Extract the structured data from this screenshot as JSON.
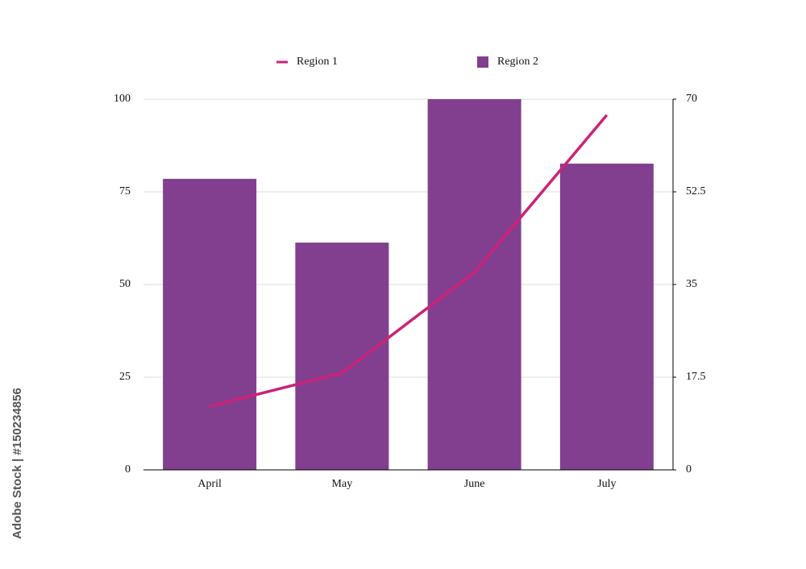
{
  "chart_data": {
    "type": "bar",
    "categories": [
      "April",
      "May",
      "June",
      "July"
    ],
    "series": [
      {
        "name": "Region 1",
        "type": "line",
        "axis": "y2",
        "color": "#cc2277",
        "values": [
          12.0,
          18.3,
          37.3,
          67.0
        ]
      },
      {
        "name": "Region 2",
        "type": "bar",
        "color": "#823f8f",
        "values": [
          78.5,
          61.3,
          100,
          82.6
        ]
      }
    ],
    "ylim": [
      0,
      100
    ],
    "yticks": [
      0,
      25,
      50,
      75,
      100
    ],
    "y2lim": [
      0,
      70
    ],
    "y2ticks": [
      0,
      17.5,
      35,
      52.5,
      70
    ],
    "grid": true,
    "legend": "top"
  },
  "watermark": "Adobe Stock | #150234856"
}
